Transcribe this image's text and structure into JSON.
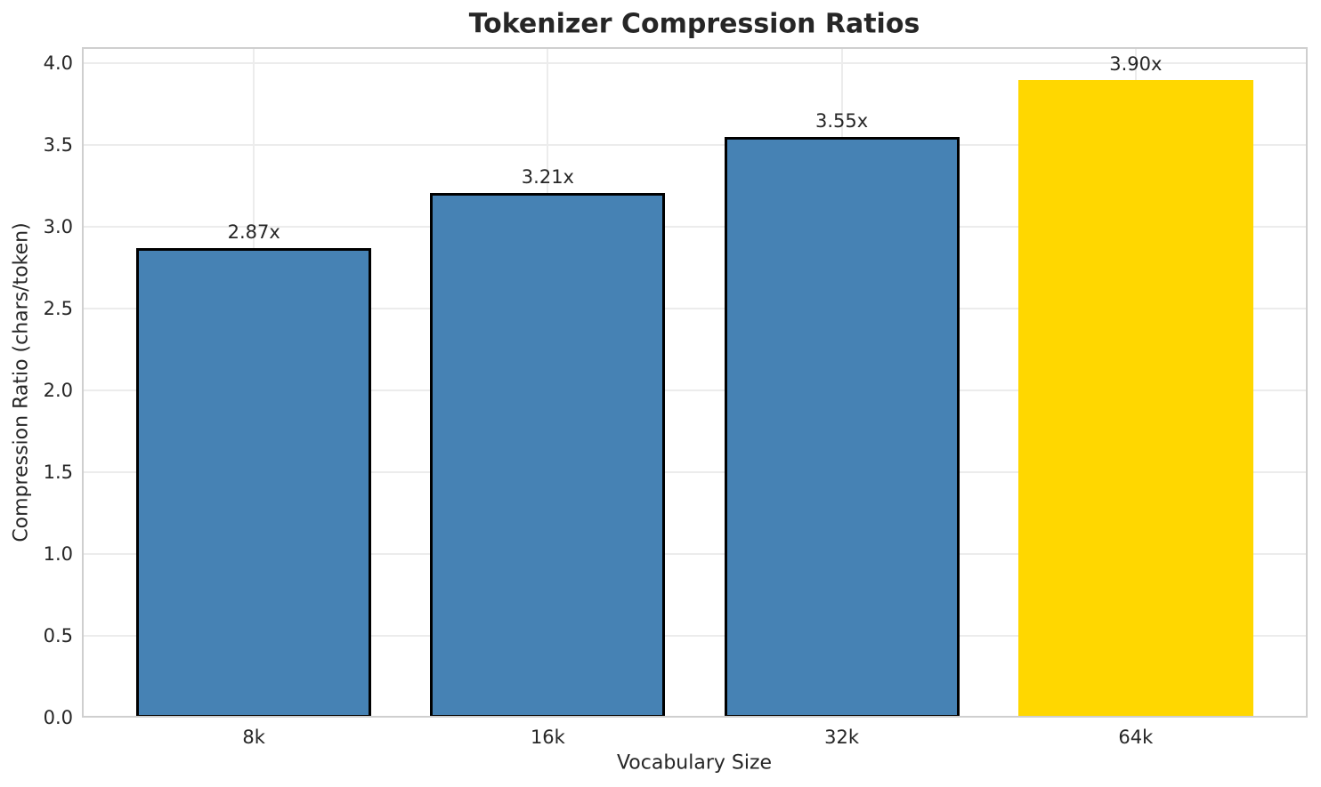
{
  "title": "Tokenizer Compression Ratios",
  "chart_data": {
    "type": "bar",
    "title": "Tokenizer Compression Ratios",
    "xlabel": "Vocabulary Size",
    "ylabel": "Compression Ratio (chars/token)",
    "categories": [
      "8k",
      "16k",
      "32k",
      "64k"
    ],
    "values": [
      2.87,
      3.21,
      3.55,
      3.9
    ],
    "bar_labels": [
      "2.87x",
      "3.21x",
      "3.55x",
      "3.90x"
    ],
    "bar_colors": [
      "#4682B4",
      "#4682B4",
      "#4682B4",
      "#FFD700"
    ],
    "bar_edge_colors": [
      "#000000",
      "#000000",
      "#000000",
      "none"
    ],
    "bar_width": 0.8,
    "xlim": [
      -0.585,
      3.585
    ],
    "ylim": [
      0,
      4.1
    ],
    "yticks": [
      0.0,
      0.5,
      1.0,
      1.5,
      2.0,
      2.5,
      3.0,
      3.5,
      4.0
    ],
    "ytick_labels": [
      "0.0",
      "0.5",
      "1.0",
      "1.5",
      "2.0",
      "2.5",
      "3.0",
      "3.5",
      "4.0"
    ],
    "grid": "both",
    "legend": "none",
    "colors": {
      "grid": "#ececec",
      "spine": "#cfcfcf",
      "text": "#262626",
      "bar_blue": "#4682B4",
      "bar_highlight_gold": "#FFD700",
      "bar_edge": "#000000",
      "background": "#ffffff"
    }
  }
}
